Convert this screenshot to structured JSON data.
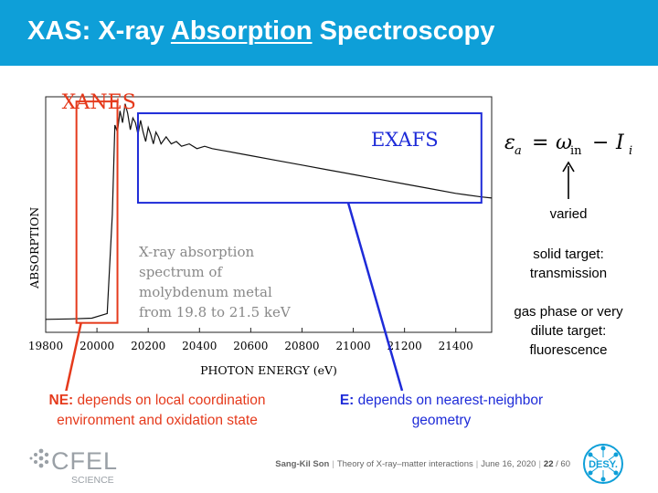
{
  "slide": {
    "title_prefix": "XAS: X-ray ",
    "title_underlined": "Absorption",
    "title_suffix": " Spectroscopy"
  },
  "chart_data": {
    "type": "line",
    "xlabel": "PHOTON ENERGY (eV)",
    "ylabel": "ABSORPTION",
    "xlim": [
      19800,
      21540
    ],
    "x_ticks": [
      19800,
      20000,
      20200,
      20400,
      20600,
      20800,
      21000,
      21200,
      21400
    ],
    "x_tick_labels": [
      "19800",
      "20000",
      "20200",
      "20400",
      "20600",
      "20800",
      "21000",
      "21200",
      "21400"
    ],
    "ylim": [
      0,
      1
    ],
    "series": [
      {
        "x": [
          19800,
          19900,
          19980,
          20040,
          20060,
          20070,
          20080,
          20090,
          20100,
          20110,
          20120,
          20130,
          20140,
          20150,
          20160,
          20170,
          20180,
          20190,
          20200,
          20210,
          20220,
          20230,
          20240,
          20250,
          20270,
          20290,
          20310,
          20330,
          20360,
          20390,
          20420,
          20450,
          20500,
          20600,
          20700,
          20800,
          20900,
          21000,
          21100,
          21200,
          21300,
          21400,
          21500,
          21540
        ],
        "y": [
          0.055,
          0.057,
          0.06,
          0.08,
          0.5,
          0.88,
          0.85,
          0.94,
          0.89,
          0.97,
          0.93,
          0.86,
          0.91,
          0.89,
          0.84,
          0.9,
          0.85,
          0.81,
          0.87,
          0.84,
          0.8,
          0.85,
          0.83,
          0.8,
          0.83,
          0.8,
          0.81,
          0.79,
          0.8,
          0.78,
          0.79,
          0.78,
          0.77,
          0.75,
          0.73,
          0.71,
          0.69,
          0.67,
          0.65,
          0.63,
          0.61,
          0.59,
          0.575,
          0.57
        ]
      }
    ],
    "annotations": {
      "xanes_label": "XANES",
      "exafs_label": "EXAFS",
      "xanes_range": [
        19920,
        20080
      ],
      "exafs_range": [
        20160,
        21500
      ],
      "xanes_box_y": [
        0.04,
        0.98
      ],
      "exafs_box_y": [
        0.55,
        0.93
      ],
      "xanes_color": "#e53a1c",
      "exafs_color": "#1e2bd8",
      "description": [
        "X-ray absorption",
        "spectrum of",
        "molybdenum metal",
        "from 19.8 to 21.5 keV"
      ]
    }
  },
  "formula": {
    "lhs": "ε",
    "lhs_sub": "a",
    "eq": "=",
    "omega": "ω",
    "omega_sub": "in",
    "minus": "−",
    "rhs": "I",
    "rhs_sub": "i"
  },
  "side_notes": {
    "varied": "varied",
    "solid_line1": "solid target:",
    "solid_line2": "transmission",
    "gas_line1": "gas phase or very",
    "gas_line2": "dilute target:",
    "gas_line3": "fluorescence"
  },
  "notes": {
    "ne_bold": "NE:",
    "ne_line1": " depends on local coordination",
    "ne_line2": "environment and oxidation state",
    "e_bold": "E:",
    "e_line1": " depends on nearest-neighbor",
    "e_line2": "geometry"
  },
  "footer": {
    "author": "Sang-Kil Son",
    "talk": "Theory of X-ray–matter interactions",
    "date": "June 16, 2020",
    "page": "22",
    "total": "/ 60"
  },
  "logos": {
    "cfel_text": "CFEL",
    "cfel_sub": "SCIENCE",
    "desy_text": "DESY."
  },
  "colors": {
    "header": "#0e9fd8",
    "xanes": "#e53a1c",
    "exafs": "#1e2bd8"
  }
}
